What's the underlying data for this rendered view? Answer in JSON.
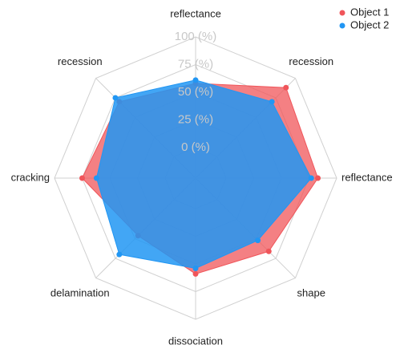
{
  "chart_data": {
    "type": "radar",
    "categories": [
      "reflectance",
      "recession",
      "reflectance",
      "shape",
      "dissociation",
      "delamination",
      "cracking",
      "recession"
    ],
    "series": [
      {
        "name": "Object 1",
        "color": "#f0555a",
        "values": [
          58,
          88,
          83,
          66,
          59,
          46,
          75,
          70
        ]
      },
      {
        "name": "Object 2",
        "color": "#2196f3",
        "values": [
          61,
          70,
          77,
          52,
          54,
          70,
          62,
          75
        ]
      }
    ],
    "rlim": [
      0,
      100
    ],
    "rticks": [
      {
        "value": 0,
        "label": "0 (%)"
      },
      {
        "value": 25,
        "label": "25 (%)"
      },
      {
        "value": 50,
        "label": "50 (%)"
      },
      {
        "value": 75,
        "label": "75 (%)"
      },
      {
        "value": 100,
        "label": "100 (%)"
      }
    ],
    "legend": "top-right",
    "grid": true
  }
}
